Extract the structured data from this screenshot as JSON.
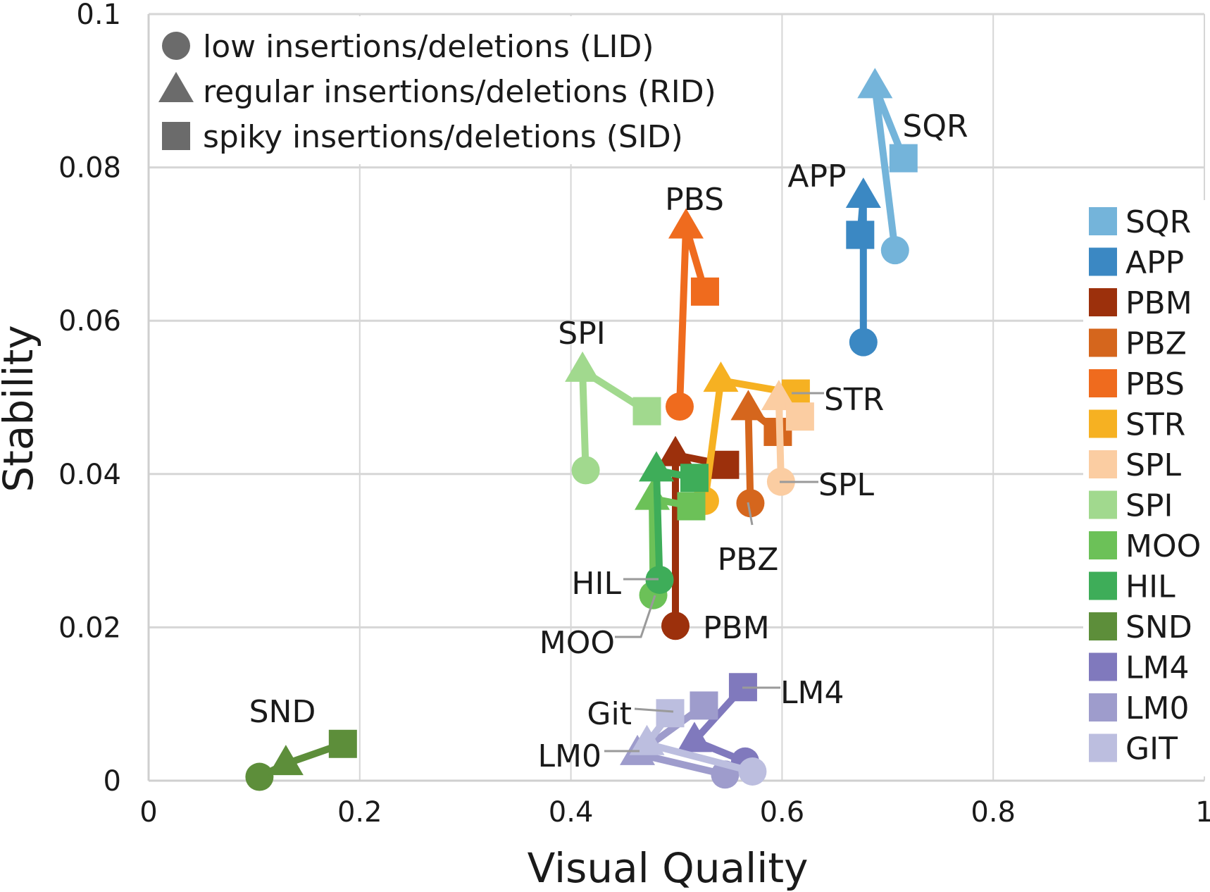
{
  "chart_data": {
    "type": "scatter",
    "title": "",
    "xlabel": "Visual Quality",
    "ylabel": "Stability",
    "xlim": [
      0,
      1
    ],
    "ylim": [
      0,
      0.1
    ],
    "xticks": [
      0,
      0.2,
      0.4,
      0.6,
      0.8,
      1
    ],
    "yticks": [
      0,
      0.02,
      0.04,
      0.06,
      0.08,
      0.1
    ],
    "xtick_labels": [
      "0",
      "0.2",
      "0.4",
      "0.6",
      "0.8",
      "1"
    ],
    "ytick_labels": [
      "0",
      "0.02",
      "0.04",
      "0.06",
      "0.08",
      "0.1"
    ],
    "grid": true,
    "marker_legend": {
      "placement": "top-left",
      "items": [
        {
          "marker": "circle",
          "label": "low insertions/deletions (LID)"
        },
        {
          "marker": "triangle",
          "label": "regular insertions/deletions (RID)"
        },
        {
          "marker": "square",
          "label": "spiky insertions/deletions (SID)"
        }
      ]
    },
    "color_legend": {
      "placement": "right"
    },
    "series": [
      {
        "name": "SQR",
        "color": "#74b4da",
        "label": "SQR",
        "points": {
          "LID": [
            0.707,
            0.0692
          ],
          "RID": [
            0.688,
            0.0905
          ],
          "SID": [
            0.715,
            0.0812
          ]
        }
      },
      {
        "name": "APP",
        "color": "#3b88c3",
        "label": "APP",
        "points": {
          "LID": [
            0.677,
            0.0572
          ],
          "RID": [
            0.677,
            0.0762
          ],
          "SID": [
            0.674,
            0.0712
          ]
        }
      },
      {
        "name": "PBM",
        "color": "#9c300c",
        "label": "PBM",
        "points": {
          "LID": [
            0.499,
            0.0202
          ],
          "RID": [
            0.499,
            0.0425
          ],
          "SID": [
            0.546,
            0.0412
          ]
        }
      },
      {
        "name": "PBZ",
        "color": "#d5661d",
        "label": "PBZ",
        "points": {
          "LID": [
            0.57,
            0.0362
          ],
          "RID": [
            0.568,
            0.0485
          ],
          "SID": [
            0.596,
            0.0455
          ]
        }
      },
      {
        "name": "PBS",
        "color": "#ef6b1e",
        "label": "PBS",
        "points": {
          "LID": [
            0.503,
            0.0488
          ],
          "RID": [
            0.509,
            0.0722
          ],
          "SID": [
            0.527,
            0.0638
          ]
        }
      },
      {
        "name": "STR",
        "color": "#f6b122",
        "label": "STR",
        "points": {
          "LID": [
            0.527,
            0.0365
          ],
          "RID": [
            0.542,
            0.0522
          ],
          "SID": [
            0.613,
            0.0505
          ]
        }
      },
      {
        "name": "SPL",
        "color": "#fbcda2",
        "label": "SPL",
        "points": {
          "LID": [
            0.599,
            0.039
          ],
          "RID": [
            0.597,
            0.0498
          ],
          "SID": [
            0.617,
            0.0475
          ]
        }
      },
      {
        "name": "SPI",
        "color": "#a1d98e",
        "label": "SPI",
        "points": {
          "LID": [
            0.414,
            0.0405
          ],
          "RID": [
            0.411,
            0.0535
          ],
          "SID": [
            0.472,
            0.0482
          ]
        }
      },
      {
        "name": "MOO",
        "color": "#6cc158",
        "label": "MOO",
        "points": {
          "LID": [
            0.478,
            0.0242
          ],
          "RID": [
            0.477,
            0.0368
          ],
          "SID": [
            0.514,
            0.0358
          ]
        }
      },
      {
        "name": "HIL",
        "color": "#3ead59",
        "label": "HIL",
        "points": {
          "LID": [
            0.484,
            0.0262
          ],
          "RID": [
            0.481,
            0.0405
          ],
          "SID": [
            0.517,
            0.0395
          ]
        }
      },
      {
        "name": "SND",
        "color": "#5d8e3a",
        "label": "SND",
        "points": {
          "LID": [
            0.105,
            0.0005
          ],
          "RID": [
            0.13,
            0.0022
          ],
          "SID": [
            0.184,
            0.0048
          ]
        }
      },
      {
        "name": "LM4",
        "color": "#8079bd",
        "label": "LM4",
        "points": {
          "LID": [
            0.565,
            0.0025
          ],
          "RID": [
            0.517,
            0.0052
          ],
          "SID": [
            0.563,
            0.0122
          ]
        }
      },
      {
        "name": "LM0",
        "color": "#9e9ccc",
        "label": "LM0",
        "points": {
          "LID": [
            0.546,
            0.0008
          ],
          "RID": [
            0.463,
            0.0035
          ],
          "SID": [
            0.526,
            0.0098
          ]
        }
      },
      {
        "name": "GIT",
        "color": "#bcbedf",
        "label": "Git",
        "points": {
          "LID": [
            0.572,
            0.0012
          ],
          "RID": [
            0.472,
            0.0048
          ],
          "SID": [
            0.494,
            0.0088
          ]
        }
      }
    ]
  }
}
